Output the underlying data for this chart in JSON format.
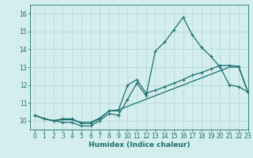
{
  "xlabel": "Humidex (Indice chaleur)",
  "xlim": [
    -0.5,
    23
  ],
  "ylim": [
    9.5,
    16.5
  ],
  "yticks": [
    10,
    11,
    12,
    13,
    14,
    15,
    16
  ],
  "xticks": [
    0,
    1,
    2,
    3,
    4,
    5,
    6,
    7,
    8,
    9,
    10,
    11,
    12,
    13,
    14,
    15,
    16,
    17,
    18,
    19,
    20,
    21,
    22,
    23
  ],
  "background_color": "#d4eeee",
  "grid_color": "#b8d8d8",
  "line_color": "#1a6e6e",
  "line1_y": [
    10.3,
    10.1,
    10.0,
    9.9,
    9.9,
    9.7,
    9.7,
    10.0,
    10.4,
    10.3,
    11.2,
    12.1,
    11.4,
    13.9,
    14.4,
    15.1,
    15.8,
    14.8,
    14.1,
    13.6,
    13.0,
    12.0,
    11.9,
    11.6
  ],
  "line2_y": [
    10.3,
    10.1,
    10.0,
    10.1,
    10.1,
    9.85,
    9.85,
    10.1,
    10.55,
    10.55,
    12.0,
    12.3,
    11.55,
    11.7,
    11.9,
    12.1,
    12.3,
    12.55,
    12.7,
    12.9,
    13.1,
    13.1,
    13.05,
    11.6
  ],
  "line3_y": [
    10.3,
    10.1,
    10.0,
    10.05,
    10.05,
    9.9,
    9.9,
    10.15,
    10.55,
    10.6,
    10.8,
    11.0,
    11.2,
    11.4,
    11.6,
    11.8,
    12.0,
    12.2,
    12.4,
    12.6,
    12.8,
    13.0,
    13.0,
    11.6
  ]
}
